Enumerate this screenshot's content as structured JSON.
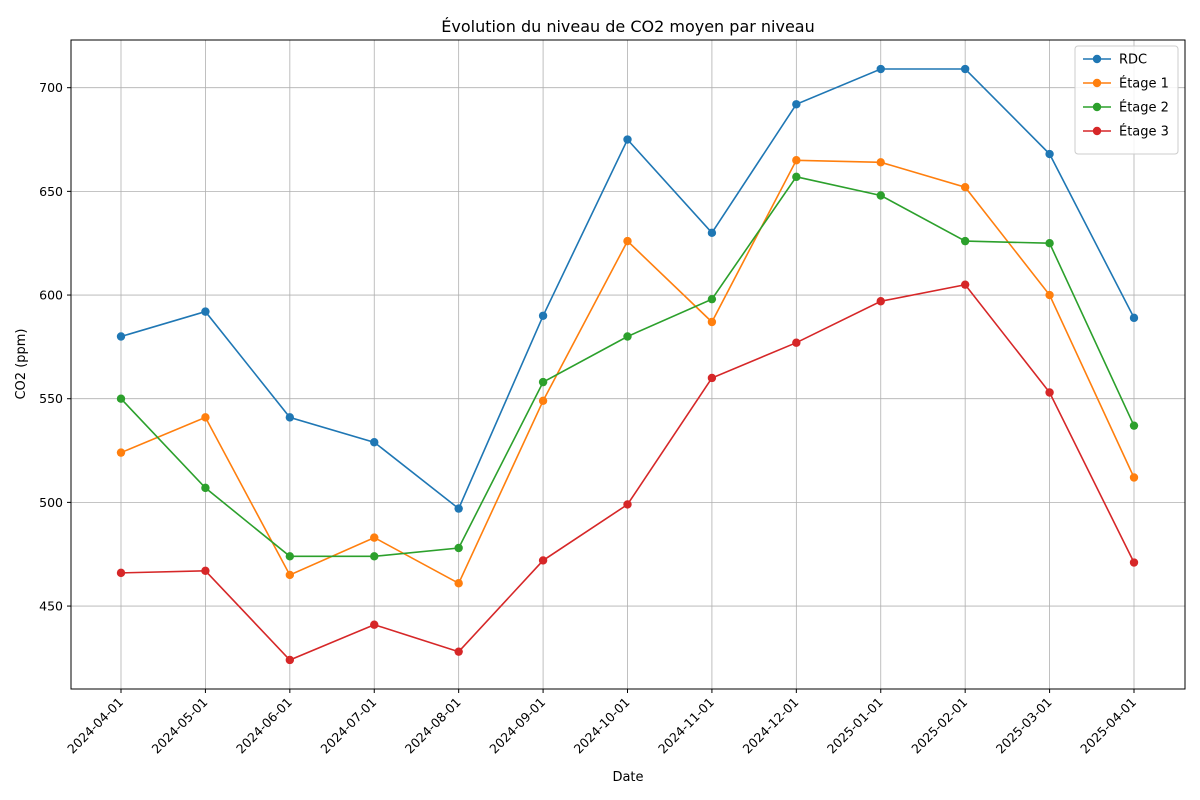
{
  "chart_data": {
    "type": "line",
    "title": "Évolution du niveau de CO2 moyen par niveau",
    "xlabel": "Date",
    "ylabel": "CO2 (ppm)",
    "x": [
      "2024-04-01",
      "2024-05-01",
      "2024-06-01",
      "2024-07-01",
      "2024-08-01",
      "2024-09-01",
      "2024-10-01",
      "2024-11-01",
      "2024-12-01",
      "2025-01-01",
      "2025-02-01",
      "2025-03-01",
      "2025-04-01"
    ],
    "ylim": [
      410,
      723
    ],
    "yticks": [
      450,
      500,
      550,
      600,
      650,
      700
    ],
    "grid": true,
    "legend_position": "top-right",
    "series": [
      {
        "name": "RDC",
        "color": "#1f77b4",
        "values": [
          580,
          592,
          541,
          529,
          497,
          590,
          675,
          630,
          692,
          709,
          709,
          668,
          589
        ]
      },
      {
        "name": "Étage 1",
        "color": "#ff7f0e",
        "values": [
          524,
          541,
          465,
          483,
          461,
          549,
          626,
          587,
          665,
          664,
          652,
          600,
          512
        ]
      },
      {
        "name": "Étage 2",
        "color": "#2ca02c",
        "values": [
          550,
          507,
          474,
          474,
          478,
          558,
          580,
          598,
          657,
          648,
          626,
          625,
          537
        ]
      },
      {
        "name": "Étage 3",
        "color": "#d62728",
        "values": [
          466,
          467,
          424,
          441,
          428,
          472,
          499,
          560,
          577,
          597,
          605,
          553,
          471
        ]
      }
    ]
  }
}
